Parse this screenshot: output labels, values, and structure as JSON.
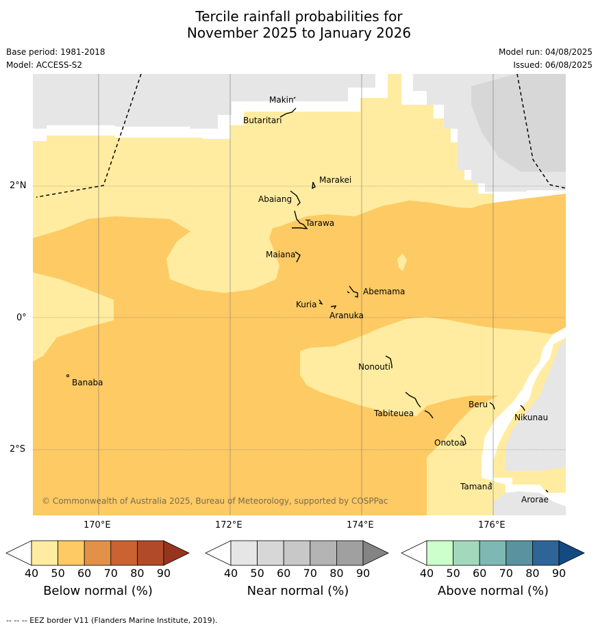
{
  "title": {
    "line1": "Tercile rainfall probabilities for",
    "line2": "November 2025 to January 2026"
  },
  "meta": {
    "base_period": "Base period: 1981-2018",
    "model": "Model: ACCESS-S2",
    "model_run": "Model run: 04/08/2025",
    "issued": "Issued: 06/08/2025"
  },
  "map": {
    "copyright": "© Commonwealth of Australia 2025, Bureau of Meteorology, supported by COSPPac",
    "lat_labels": [
      "2°N",
      "0°",
      "2°S"
    ],
    "lon_labels": [
      "170°E",
      "172°E",
      "174°E",
      "176°E"
    ],
    "islands": [
      "Makin",
      "Butaritari",
      "Marakei",
      "Abaiang",
      "Tarawa",
      "Maiana",
      "Abemama",
      "Kuria",
      "Aranuka",
      "Banaba",
      "Nonouti",
      "Beru",
      "Tabiteuea",
      "Nikunau",
      "Onotoa",
      "Tamana",
      "Arorae"
    ],
    "colors": {
      "below_50": "#ffeca0",
      "below_60": "#fdca64",
      "near_40": "#e6e6e6",
      "near_50": "#d7d7d7",
      "coast": "#000000"
    }
  },
  "colorbars": [
    {
      "label": "Below normal (%)",
      "ticks": [
        "40",
        "50",
        "60",
        "70",
        "80",
        "90"
      ],
      "colors": [
        "#ffffff",
        "#ffeca0",
        "#fdca64",
        "#e19148",
        "#cb6232",
        "#b14a28",
        "#96351e"
      ]
    },
    {
      "label": "Near normal (%)",
      "ticks": [
        "40",
        "50",
        "60",
        "70",
        "80",
        "90"
      ],
      "colors": [
        "#ffffff",
        "#e6e6e6",
        "#d7d7d7",
        "#c8c8c8",
        "#b4b4b4",
        "#a0a0a0",
        "#848484"
      ]
    },
    {
      "label": "Above normal (%)",
      "ticks": [
        "40",
        "50",
        "60",
        "70",
        "80",
        "90"
      ],
      "colors": [
        "#ffffff",
        "#ccffcc",
        "#a3d8bd",
        "#7fb8b2",
        "#5b92a0",
        "#2f6496",
        "#134b80"
      ]
    }
  ],
  "footer": "--  --  -- EEZ border V11 (Flanders Marine Institute, 2019)."
}
